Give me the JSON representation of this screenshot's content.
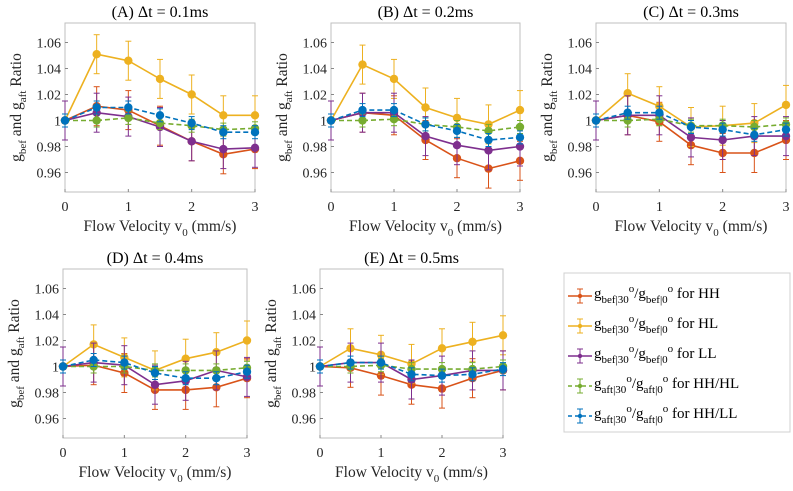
{
  "chart_data": {
    "type": "line",
    "xlabel": {
      "main": "Flow Velocity v",
      "sub": "0",
      "tail": " (mm/s)"
    },
    "ylabel": {
      "p1": "g",
      "s1": "bef",
      "p2": " and g",
      "s2": "aft",
      "p3": " Ratio"
    },
    "x": [
      0,
      0.5,
      1,
      1.5,
      2,
      2.5,
      3
    ],
    "xlim": [
      0,
      3
    ],
    "ylim": [
      0.945,
      1.075
    ],
    "xticks": [
      0,
      1,
      2,
      3
    ],
    "xtick_labels": [
      "0",
      "1",
      "2",
      "3"
    ],
    "yticks": [
      0.96,
      0.98,
      1,
      1.02,
      1.04,
      1.06
    ],
    "ytick_labels": [
      "0.96",
      "0.98",
      "1",
      "1.02",
      "1.04",
      "1.06"
    ],
    "legend_position": "right of bottom row",
    "series_meta": [
      {
        "key": "HH",
        "color": "#D95319",
        "dashed": false,
        "err": 0.015,
        "label": {
          "a": "g",
          "b": "bef|30",
          "c": "o",
          "d": "/g",
          "e": "bef|0",
          "f": "o",
          "g": " for HH"
        }
      },
      {
        "key": "HL",
        "color": "#EDB120",
        "dashed": false,
        "err": 0.015,
        "label": {
          "a": "g",
          "b": "bef|30",
          "c": "o",
          "d": "/g",
          "e": "bef|0",
          "f": "o",
          "g": " for HL"
        }
      },
      {
        "key": "LL",
        "color": "#7E2F8E",
        "dashed": false,
        "err": 0.015,
        "label": {
          "a": "g",
          "b": "bef|30",
          "c": "o",
          "d": "/g",
          "e": "bef|0",
          "f": "o",
          "g": " for LL"
        }
      },
      {
        "key": "HH/HL",
        "color": "#77AC30",
        "dashed": true,
        "err": 0.005,
        "label": {
          "a": "g",
          "b": "aft|30",
          "c": "o",
          "d": "/g",
          "e": "aft|0",
          "f": "o",
          "g": " for HH/HL"
        }
      },
      {
        "key": "HH/LL",
        "color": "#0072BD",
        "dashed": true,
        "err": 0.005,
        "label": {
          "a": "g",
          "b": "aft|30",
          "c": "o",
          "d": "/g",
          "e": "aft|0",
          "f": "o",
          "g": " for HH/LL"
        }
      }
    ],
    "panels": [
      {
        "title": "(A) Δt = 0.1ms",
        "series": [
          [
            1,
            1.011,
            1.008,
            0.996,
            0.984,
            0.974,
            0.978
          ],
          [
            1,
            1.051,
            1.046,
            1.032,
            1.02,
            1.004,
            1.004
          ],
          [
            1,
            1.006,
            1.003,
            0.995,
            0.984,
            0.978,
            0.979
          ],
          [
            1,
            1.0,
            1.002,
            0.998,
            0.996,
            0.993,
            0.994
          ],
          [
            1,
            1.01,
            1.01,
            1.004,
            0.998,
            0.991,
            0.991
          ]
        ]
      },
      {
        "title": "(B) Δt = 0.2ms",
        "series": [
          [
            1,
            1.006,
            1.004,
            0.985,
            0.971,
            0.963,
            0.969
          ],
          [
            1,
            1.043,
            1.032,
            1.01,
            1.002,
            0.997,
            1.008
          ],
          [
            1,
            1.006,
            1.006,
            0.988,
            0.981,
            0.977,
            0.98
          ],
          [
            1,
            1.0,
            1.001,
            0.997,
            0.995,
            0.992,
            0.995
          ],
          [
            1,
            1.008,
            1.008,
            0.997,
            0.992,
            0.985,
            0.987
          ]
        ]
      },
      {
        "title": "(C) Δt = 0.3ms",
        "series": [
          [
            1,
            1.004,
            0.999,
            0.981,
            0.975,
            0.975,
            0.985
          ],
          [
            1,
            1.021,
            1.011,
            0.995,
            0.996,
            0.998,
            1.012
          ],
          [
            1,
            1.004,
            1.004,
            0.987,
            0.985,
            0.988,
            0.988
          ],
          [
            1,
            1.0,
            1.001,
            0.996,
            0.996,
            0.995,
            0.997
          ],
          [
            1,
            1.006,
            1.006,
            0.995,
            0.993,
            0.989,
            0.993
          ]
        ]
      },
      {
        "title": "(D) Δt = 0.4ms",
        "series": [
          [
            1,
            1.001,
            0.995,
            0.982,
            0.982,
            0.984,
            0.991
          ],
          [
            1,
            1.017,
            1.007,
            0.997,
            1.006,
            1.011,
            1.02
          ],
          [
            1,
            1.003,
            1.001,
            0.986,
            0.989,
            0.997,
            0.992
          ],
          [
            1,
            1.0,
            1.0,
            0.997,
            0.997,
            0.997,
            0.999
          ],
          [
            1,
            1.005,
            1.003,
            0.995,
            0.991,
            0.991,
            0.996
          ]
        ]
      },
      {
        "title": "(E) Δt = 0.5ms",
        "series": [
          [
            1,
            0.999,
            0.993,
            0.986,
            0.983,
            0.991,
            0.997
          ],
          [
            1,
            1.014,
            1.009,
            1.002,
            1.014,
            1.019,
            1.024
          ],
          [
            1,
            1.003,
            1.003,
            0.99,
            0.993,
            0.997,
            0.997
          ],
          [
            1,
            1.0,
            1.001,
            0.998,
            0.998,
            0.998,
            1.0
          ],
          [
            1,
            1.003,
            1.003,
            0.994,
            0.993,
            0.994,
            0.998
          ]
        ]
      }
    ]
  }
}
